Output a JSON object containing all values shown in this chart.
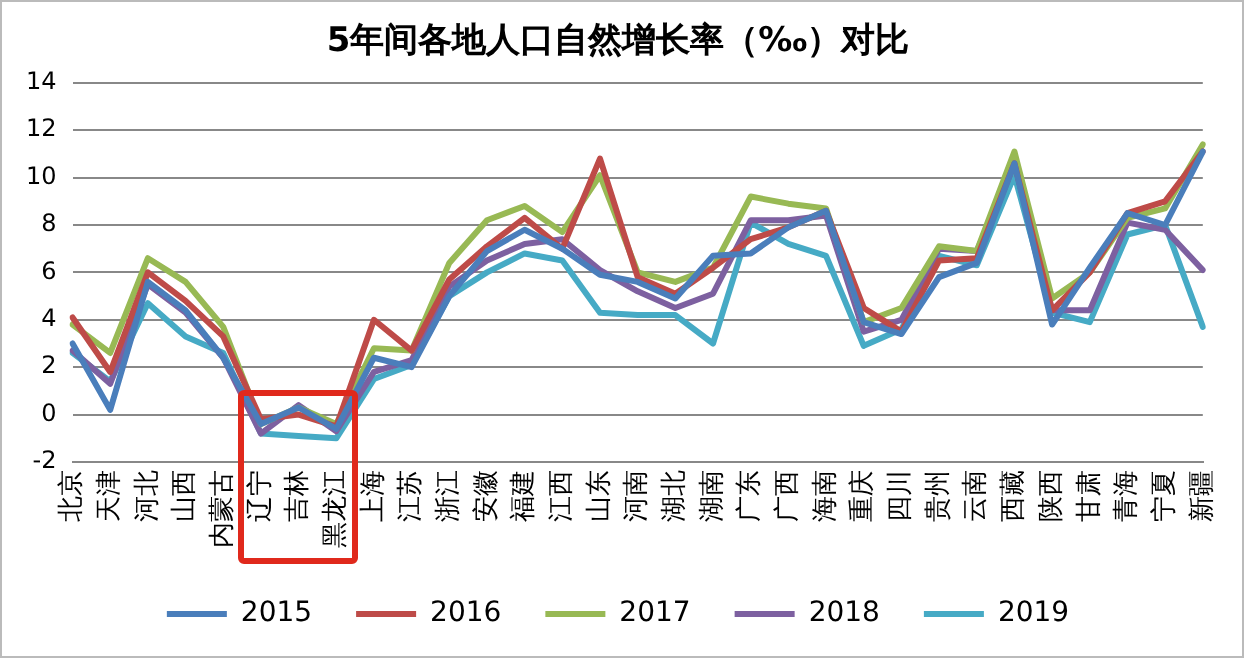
{
  "chart_data": {
    "type": "line",
    "title": "5年间各地人口自然增长率（‰）对比",
    "categories": [
      "北京",
      "天津",
      "河北",
      "山西",
      "内蒙古",
      "辽宁",
      "吉林",
      "黑龙江",
      "上海",
      "江苏",
      "浙江",
      "安徽",
      "福建",
      "江西",
      "山东",
      "河南",
      "湖北",
      "湖南",
      "广东",
      "广西",
      "海南",
      "重庆",
      "四川",
      "贵州",
      "云南",
      "西藏",
      "陕西",
      "甘肃",
      "青海",
      "宁夏",
      "新疆"
    ],
    "series": [
      {
        "name": "2015",
        "color": "#4a7ebb",
        "values": [
          3.0,
          0.2,
          5.6,
          4.4,
          2.4,
          -0.4,
          0.3,
          -0.6,
          2.4,
          2.0,
          5.0,
          6.9,
          7.8,
          7.0,
          5.9,
          5.6,
          4.9,
          6.7,
          6.8,
          7.9,
          8.6,
          3.9,
          3.4,
          5.8,
          6.4,
          10.6,
          3.8,
          6.2,
          8.5,
          8.0,
          11.1
        ]
      },
      {
        "name": "2016",
        "color": "#be4b48",
        "values": [
          4.1,
          1.8,
          6.0,
          4.8,
          3.3,
          -0.2,
          0,
          -0.5,
          4.0,
          2.7,
          5.7,
          7.1,
          8.3,
          7.0,
          10.8,
          5.8,
          5.1,
          6.2,
          7.4,
          7.9,
          8.6,
          4.5,
          3.5,
          6.5,
          6.6,
          10.6,
          4.4,
          6.0,
          8.5,
          9.0,
          11.1
        ]
      },
      {
        "name": "2017",
        "color": "#98b954",
        "values": [
          3.8,
          2.6,
          6.6,
          5.6,
          3.7,
          -0.4,
          0.3,
          -0.4,
          2.8,
          2.7,
          6.4,
          8.2,
          8.8,
          7.7,
          10.1,
          6.0,
          5.6,
          6.2,
          9.2,
          8.9,
          8.7,
          3.9,
          4.5,
          7.1,
          6.9,
          11.1,
          4.9,
          6.0,
          8.3,
          8.7,
          11.4
        ]
      },
      {
        "name": "2018",
        "color": "#7d60a0",
        "values": [
          2.7,
          1.3,
          5.5,
          4.3,
          2.4,
          -0.8,
          0.4,
          -0.7,
          1.8,
          2.3,
          5.4,
          6.5,
          7.2,
          7.4,
          6.1,
          5.2,
          4.5,
          5.1,
          8.2,
          8.2,
          8.4,
          3.5,
          4.0,
          7.0,
          6.9,
          10.6,
          4.4,
          4.4,
          8.1,
          7.8,
          6.1
        ]
      },
      {
        "name": "2019",
        "color": "#46aac5",
        "values": [
          2.6,
          1.4,
          4.7,
          3.3,
          2.6,
          -0.8,
          -0.9,
          -1.0,
          1.5,
          2.1,
          5.0,
          6.0,
          6.8,
          6.5,
          4.3,
          4.2,
          4.2,
          3.0,
          8.1,
          7.2,
          6.7,
          2.9,
          3.6,
          6.7,
          6.3,
          10.1,
          4.3,
          3.9,
          7.6,
          8.0,
          3.7
        ]
      }
    ],
    "ylim": [
      -2,
      14
    ],
    "yticks": [
      -2,
      0,
      2,
      4,
      6,
      8,
      10,
      12,
      14
    ],
    "grid": "y",
    "legend": "bottom",
    "marker": "none",
    "line_style": "solid"
  }
}
